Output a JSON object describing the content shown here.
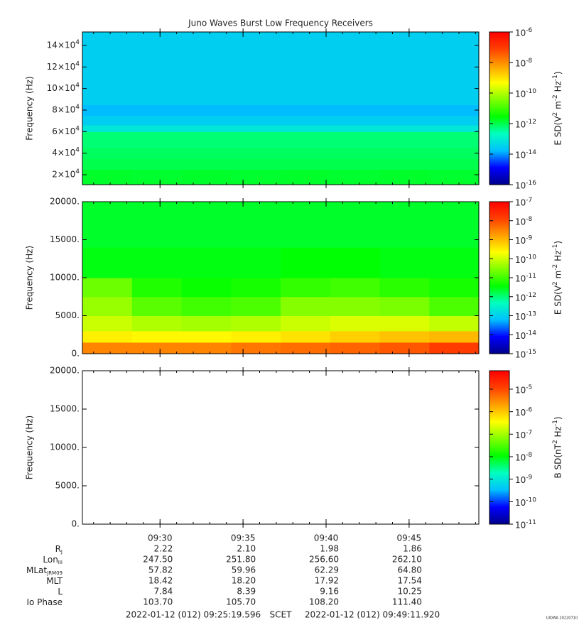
{
  "chart_data": [
    {
      "type": "heatmap",
      "title": "Juno Waves Burst Low Frequency Receivers",
      "ylabel": "Frequency (Hz)",
      "xlim": [
        "09:25:19.596",
        "09:49:11.920"
      ],
      "xticks": [
        "09:30",
        "09:35",
        "09:40",
        "09:45"
      ],
      "ylim": [
        10800,
        152500
      ],
      "yticks": [
        {
          "value": 20000,
          "label": "2×10^4"
        },
        {
          "value": 40000,
          "label": "4×10^4"
        },
        {
          "value": 60000,
          "label": "6×10^4"
        },
        {
          "value": 80000,
          "label": "8×10^4"
        },
        {
          "value": 100000,
          "label": "10×10^4"
        },
        {
          "value": 120000,
          "label": "12×10^4"
        },
        {
          "value": 140000,
          "label": "14×10^4"
        }
      ],
      "zlabel": "E SD(V^2 m^-2 Hz^-1)",
      "zscale": "log",
      "zlim": [
        1e-16,
        1e-06
      ],
      "zticks": [
        {
          "value": 1e-16,
          "label": "10^-16"
        },
        {
          "value": 1e-14,
          "label": "10^-14"
        },
        {
          "value": 1e-12,
          "label": "10^-12"
        },
        {
          "value": 1e-10,
          "label": "10^-10"
        },
        {
          "value": 1e-08,
          "label": "10^-8"
        },
        {
          "value": 1e-06,
          "label": "10^-6"
        }
      ],
      "colormap": [
        "#00008b",
        "#0000ff",
        "#00c0ff",
        "#00ffc0",
        "#00ff00",
        "#80ff00",
        "#ffff00",
        "#ffa000",
        "#ff4000",
        "#ff0000"
      ],
      "ybins": [
        10800,
        15000,
        25000,
        35000,
        45000,
        60000,
        66000,
        75000,
        85000,
        152500
      ],
      "z": [
        [
          1.6e-12,
          1.6e-12,
          1.6e-12,
          1.6e-12,
          1.6e-12,
          1.6e-12,
          1.6e-12,
          1.6e-12
        ],
        [
          1.6e-12,
          1.5e-12,
          1.6e-12,
          1.5e-12,
          1.6e-12,
          1.5e-12,
          1.6e-12,
          1.5e-12
        ],
        [
          1e-12,
          1e-12,
          1e-12,
          1e-12,
          1e-12,
          1e-12,
          1e-12,
          1e-12
        ],
        [
          8e-13,
          8e-13,
          8e-13,
          8e-13,
          8e-13,
          8e-13,
          8e-13,
          8e-13
        ],
        [
          6e-13,
          6e-13,
          6e-13,
          6e-13,
          6e-13,
          6e-13,
          6e-13,
          6e-13
        ],
        [
          8e-14,
          8e-14,
          8e-14,
          8e-14,
          8e-14,
          8e-14,
          8e-14,
          8e-14
        ],
        [
          3e-14,
          3e-14,
          3e-14,
          3e-14,
          3e-14,
          3e-14,
          3e-14,
          3e-14
        ],
        [
          1.6e-14,
          1.6e-14,
          1.6e-14,
          1.6e-14,
          1.6e-14,
          1.6e-14,
          1.6e-14,
          1.6e-14
        ],
        [
          3e-14,
          3e-14,
          3e-14,
          3e-14,
          3e-14,
          3e-14,
          3e-14,
          3e-14
        ]
      ]
    },
    {
      "type": "heatmap",
      "ylabel": "Frequency (Hz)",
      "xlim": [
        "09:25:19.596",
        "09:49:11.920"
      ],
      "xticks": [
        "09:30",
        "09:35",
        "09:40",
        "09:45"
      ],
      "ylim": [
        0,
        20000
      ],
      "yticks": [
        {
          "value": 0,
          "label": "0."
        },
        {
          "value": 5000,
          "label": "5000."
        },
        {
          "value": 10000,
          "label": "10000."
        },
        {
          "value": 15000,
          "label": "15000."
        },
        {
          "value": 20000,
          "label": "20000."
        }
      ],
      "zlabel": "E SD(V^2 m^-2 Hz^-1)",
      "zscale": "log",
      "zlim": [
        1e-15,
        1e-07
      ],
      "zticks": [
        {
          "value": 1e-15,
          "label": "10^-15"
        },
        {
          "value": 1e-14,
          "label": "10^-14"
        },
        {
          "value": 1e-13,
          "label": "10^-13"
        },
        {
          "value": 1e-12,
          "label": "10^-12"
        },
        {
          "value": 1e-11,
          "label": "10^-11"
        },
        {
          "value": 1e-10,
          "label": "10^-10"
        },
        {
          "value": 1e-09,
          "label": "10^-9"
        },
        {
          "value": 1e-08,
          "label": "10^-8"
        },
        {
          "value": 1e-07,
          "label": "10^-7"
        }
      ],
      "colormap": [
        "#00008b",
        "#0000ff",
        "#00c0ff",
        "#00ffc0",
        "#00ff00",
        "#80ff00",
        "#ffff00",
        "#ffa000",
        "#ff4000",
        "#ff0000"
      ],
      "ybins": [
        0,
        1500,
        3000,
        5000,
        7500,
        10000,
        14000,
        20000
      ],
      "z": [
        [
          3e-09,
          3e-09,
          3e-09,
          4e-09,
          5e-09,
          6e-09,
          8e-09,
          1.5e-08
        ],
        [
          3e-10,
          2.5e-10,
          2.5e-10,
          3e-10,
          4e-10,
          6e-10,
          8e-10,
          1e-09
        ],
        [
          9e-11,
          6e-11,
          5e-11,
          6e-11,
          9e-11,
          1.2e-10,
          1.2e-10,
          8e-11
        ],
        [
          4e-11,
          1.5e-11,
          1e-11,
          1.2e-11,
          3e-11,
          3e-11,
          2.5e-11,
          1.2e-11
        ],
        [
          2e-11,
          6e-12,
          4e-12,
          5e-12,
          8e-12,
          1e-11,
          7e-12,
          5e-12
        ],
        [
          3e-12,
          3e-12,
          3e-12,
          3e-12,
          3.5e-12,
          3.5e-12,
          3e-12,
          3e-12
        ],
        [
          2.3e-12,
          2.3e-12,
          2.3e-12,
          2.3e-12,
          2.3e-12,
          2.3e-12,
          2.3e-12,
          2.3e-12
        ]
      ]
    },
    {
      "type": "heatmap",
      "ylabel": "Frequency (Hz)",
      "xlim": [
        "09:25:19.596",
        "09:49:11.920"
      ],
      "xticks": [
        "09:30",
        "09:35",
        "09:40",
        "09:45"
      ],
      "ylim": [
        0,
        20000
      ],
      "yticks": [
        {
          "value": 0,
          "label": "0."
        },
        {
          "value": 5000,
          "label": "5000."
        },
        {
          "value": 10000,
          "label": "10000."
        },
        {
          "value": 15000,
          "label": "15000."
        },
        {
          "value": 20000,
          "label": "20000."
        }
      ],
      "zlabel": "B SD(nT^2 Hz^-1)",
      "zscale": "log",
      "zlim": [
        1e-11,
        6.6e-05
      ],
      "zticks": [
        {
          "value": 1e-11,
          "label": "10^-11"
        },
        {
          "value": 1e-10,
          "label": "10^-10"
        },
        {
          "value": 1e-09,
          "label": "10^-9"
        },
        {
          "value": 1e-08,
          "label": "10^-8"
        },
        {
          "value": 1e-07,
          "label": "10^-7"
        },
        {
          "value": 1e-06,
          "label": "10^-6"
        },
        {
          "value": 1e-05,
          "label": "10^-5"
        }
      ],
      "colormap": [
        "#00008b",
        "#0000ff",
        "#00c0ff",
        "#00ffc0",
        "#00ff00",
        "#80ff00",
        "#ffff00",
        "#ffa000",
        "#ff4000",
        "#ff0000"
      ]
    }
  ],
  "ephemeris": {
    "rows": [
      {
        "label": "R",
        "sub": "J",
        "values": [
          "2.22",
          "2.10",
          "1.98",
          "1.86"
        ]
      },
      {
        "label": "Lon",
        "sub": "III",
        "values": [
          "247.50",
          "251.80",
          "256.60",
          "262.10"
        ]
      },
      {
        "label": "MLat",
        "sub": "JRM09",
        "values": [
          "57.82",
          "59.96",
          "62.29",
          "64.80"
        ]
      },
      {
        "label": "MLT",
        "values": [
          "18.42",
          "18.20",
          "17.92",
          "17.54"
        ]
      },
      {
        "label": "L",
        "values": [
          "7.84",
          "8.39",
          "9.16",
          "10.25"
        ]
      },
      {
        "label": "Io Phase",
        "values": [
          "103.70",
          "105.70",
          "108.20",
          "111.40"
        ]
      }
    ]
  },
  "time_range": {
    "start": "2022-01-12 (012) 09:25:19.596",
    "frame": "SCET",
    "end": "2022-01-12 (012) 09:49:11.920"
  },
  "stamp": "UIOWA 20220710"
}
